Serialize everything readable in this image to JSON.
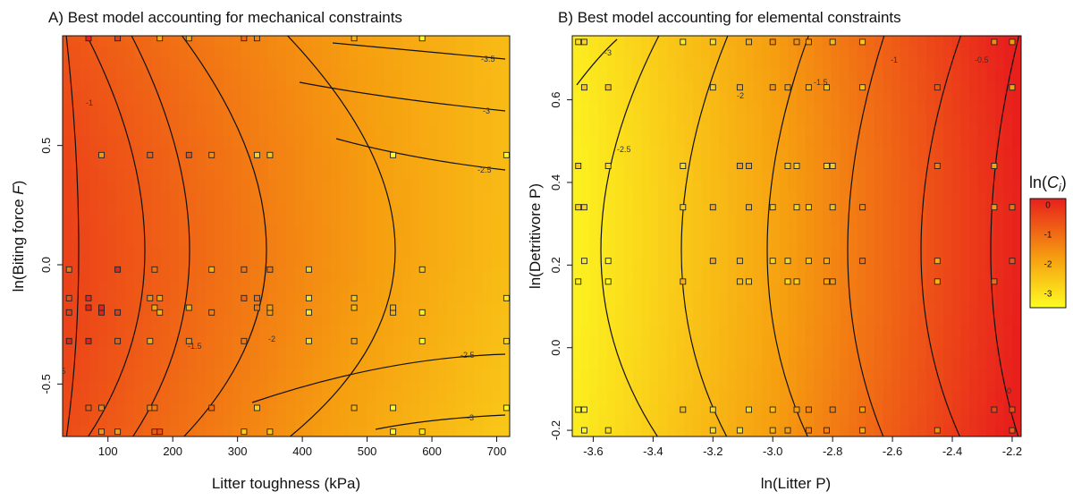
{
  "chart_data": [
    {
      "type": "heatmap",
      "title": "A) Best model accounting for mechanical constraints",
      "xlabel": "Litter toughness (kPa)",
      "ylabel": "ln(Biting force F)",
      "ylabel_parts": {
        "prefix": "ln(Biting force ",
        "var": "F",
        "suffix": ")"
      },
      "xlim": [
        30,
        720
      ],
      "ylim": [
        -0.72,
        0.96
      ],
      "xticks": [
        100,
        200,
        300,
        400,
        500,
        600,
        700
      ],
      "xtick_labels": [
        "100",
        "200",
        "300",
        "400",
        "500",
        "600",
        "700"
      ],
      "yticks": [
        -0.5,
        0.0,
        0.5
      ],
      "ytick_labels": [
        "-0.5",
        "0.0",
        "0.5"
      ],
      "contours": [
        {
          "label": "-0.5",
          "vertex": [
            58,
            0.05
          ],
          "x_at_edges": 40
        },
        {
          "label": "-1",
          "vertex": [
            140,
            0.05
          ],
          "x_at_edges": 52
        },
        {
          "label": "-1.5",
          "vertex": [
            208,
            0.05
          ],
          "x_at_edges": 115
        },
        {
          "label": "-2",
          "vertex": [
            300,
            0.05
          ],
          "x_at_edges": 180
        },
        {
          "label": "-2.5",
          "vertex": [
            455,
            0.05
          ],
          "x_at_edges": 315
        },
        {
          "label": "-3",
          "vertex": null,
          "x_at_edges": null
        },
        {
          "label": "-3.5",
          "vertex": null,
          "x_at_edges": null
        }
      ],
      "points": {
        "x": [
          40,
          70,
          90,
          115,
          165,
          172,
          180,
          225,
          260,
          310,
          330,
          350,
          410,
          480,
          540,
          585,
          715
        ],
        "y": [
          -0.7,
          -0.6,
          -0.32,
          -0.2,
          -0.18,
          -0.14,
          -0.02,
          0.46,
          0.95
        ]
      }
    },
    {
      "type": "heatmap",
      "title": "B) Best model accounting for elemental constraints",
      "xlabel": "ln(Litter P)",
      "ylabel": "ln(Detritivore P)",
      "xlim": [
        -3.67,
        -2.17
      ],
      "ylim": [
        -0.215,
        0.755
      ],
      "xticks": [
        -3.6,
        -3.4,
        -3.2,
        -3.0,
        -2.8,
        -2.6,
        -2.4,
        -2.2
      ],
      "xtick_labels": [
        "-3.6",
        "-3.4",
        "-3.2",
        "-3.0",
        "-2.8",
        "-2.6",
        "-2.4",
        "-2.2"
      ],
      "yticks": [
        -0.2,
        0.0,
        0.2,
        0.4,
        0.6
      ],
      "ytick_labels": [
        "-0.2",
        "0.0",
        "0.2",
        "0.4",
        "0.6"
      ],
      "contours": [
        {
          "label": "-3",
          "vertex": null
        },
        {
          "label": "-2.5",
          "vertex": [
            -3.4,
            0.26
          ]
        },
        {
          "label": "-2",
          "vertex": [
            -3.2,
            0.26
          ]
        },
        {
          "label": "-1.5",
          "vertex": [
            -3.05,
            0.26
          ]
        },
        {
          "label": "-1",
          "vertex": [
            -2.9,
            0.26
          ]
        },
        {
          "label": "-0.5",
          "vertex": [
            -2.6,
            0.26
          ]
        },
        {
          "label": "0",
          "vertex": [
            -2.3,
            0.26
          ]
        }
      ],
      "points": {
        "x": [
          -3.65,
          -3.63,
          -3.55,
          -3.3,
          -3.2,
          -3.11,
          -3.08,
          -3.0,
          -2.95,
          -2.92,
          -2.88,
          -2.82,
          -2.8,
          -2.7,
          -2.45,
          -2.26,
          -2.2
        ],
        "y": [
          -0.2,
          -0.15,
          0.16,
          0.21,
          0.34,
          0.44,
          0.63,
          0.74
        ]
      }
    }
  ],
  "legend": {
    "title_prefix": "ln(",
    "title_var": "C",
    "title_sub": "i",
    "title_suffix": ")",
    "tick_labels": [
      "0",
      "-1",
      "-2",
      "-3"
    ],
    "ticks": [
      0,
      -1,
      -2,
      -3
    ],
    "range": [
      -3.5,
      0.2
    ]
  },
  "colors": {
    "high": "#e8201c",
    "mid": "#f6a010",
    "low": "#fdfc22",
    "contour": "#111111",
    "point_edge": "#222222"
  }
}
